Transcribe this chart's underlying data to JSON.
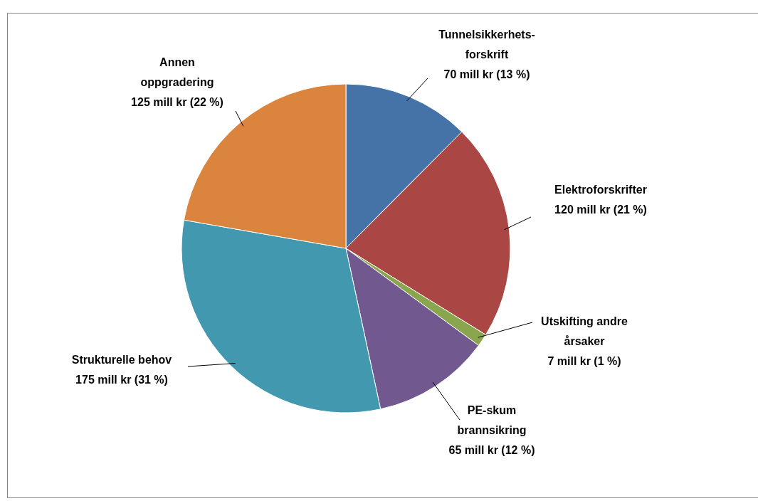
{
  "chart_data": {
    "type": "pie",
    "categories": [
      "Tunnelsikkerhets-forskrift",
      "Elektroforskrifter",
      "Utskifting andre årsaker",
      "PE-skum brannsikring",
      "Strukturelle behov",
      "Annen oppgradering"
    ],
    "values": [
      70,
      120,
      7,
      65,
      175,
      125
    ],
    "value_labels": [
      "70 mill kr (13 %)",
      "120 mill kr (21 %)",
      "7 mill kr (1 %)",
      "65 mill kr (12 %)",
      "175 mill kr (31 %)",
      "125 mill kr (22 %)"
    ],
    "colors": [
      "#4572a7",
      "#aa4643",
      "#89a54e",
      "#71588f",
      "#4198af",
      "#db843d"
    ],
    "legend": false
  }
}
